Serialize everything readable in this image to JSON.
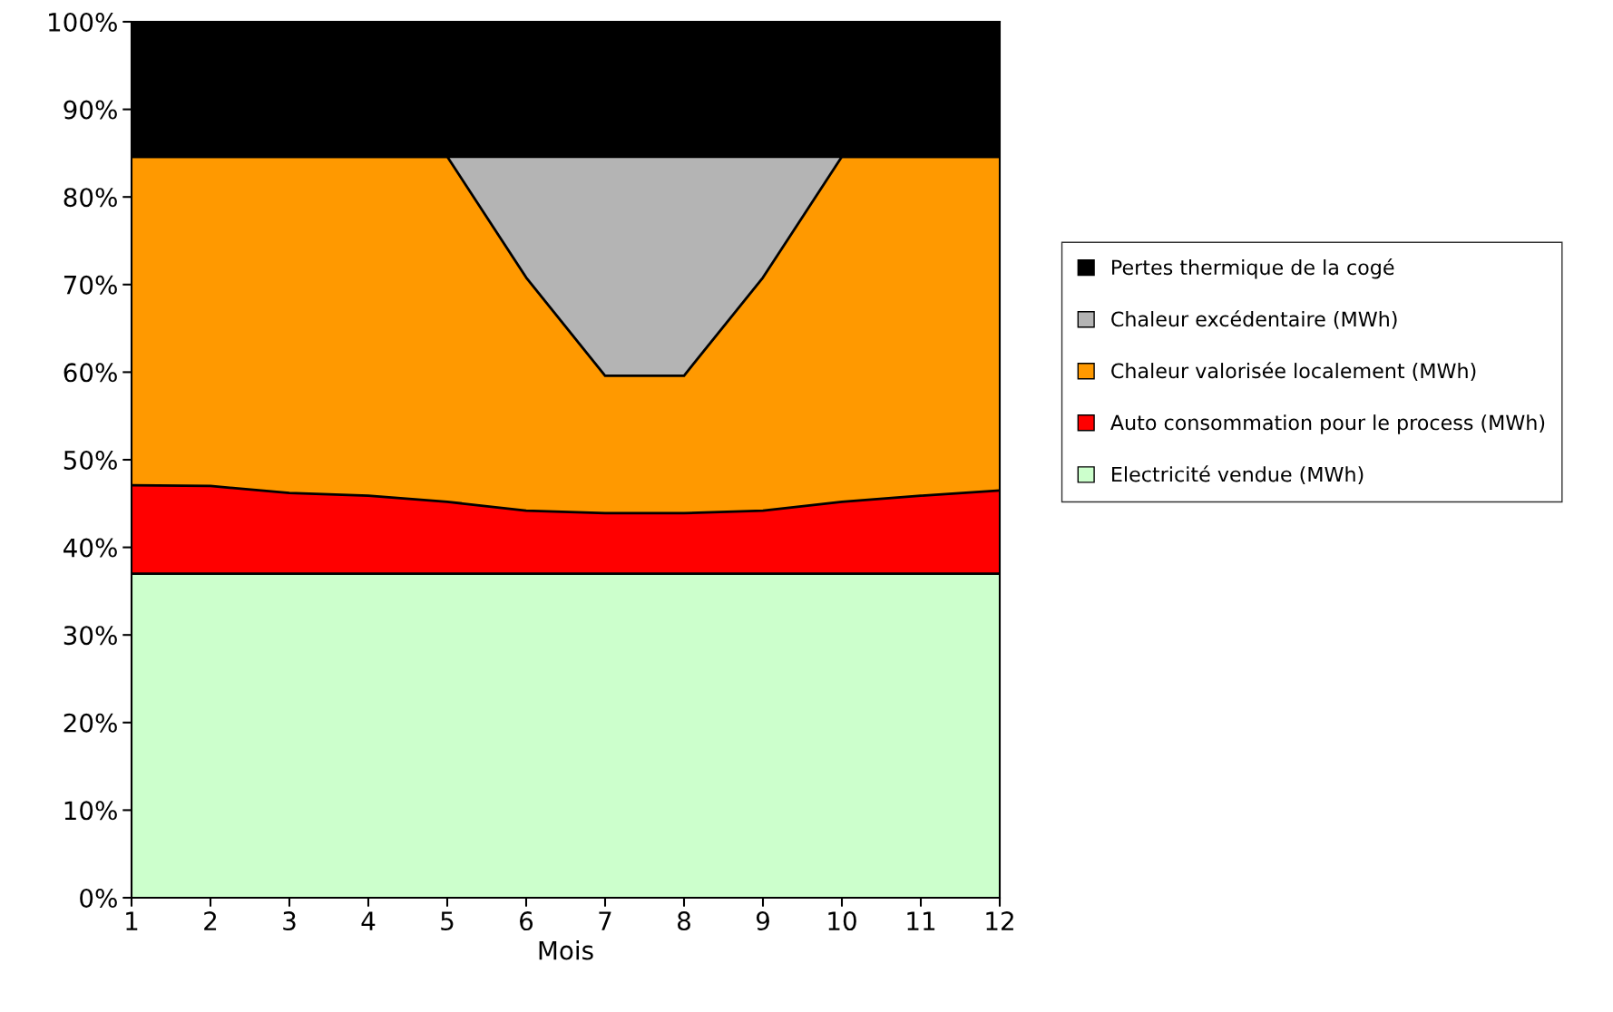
{
  "chart_data": {
    "type": "area",
    "stacked": true,
    "xlabel": "Mois",
    "x": [
      1,
      2,
      3,
      4,
      5,
      6,
      7,
      8,
      9,
      10,
      11,
      12
    ],
    "xlim": [
      1,
      12
    ],
    "xticks": [
      1,
      2,
      3,
      4,
      5,
      6,
      7,
      8,
      9,
      10,
      11,
      12
    ],
    "ylim": [
      0,
      100
    ],
    "yticks": [
      {
        "value": 0,
        "label": "0%"
      },
      {
        "value": 10,
        "label": "10%"
      },
      {
        "value": 20,
        "label": "20%"
      },
      {
        "value": 30,
        "label": "30%"
      },
      {
        "value": 40,
        "label": "40%"
      },
      {
        "value": 50,
        "label": "50%"
      },
      {
        "value": 60,
        "label": "60%"
      },
      {
        "value": 70,
        "label": "70%"
      },
      {
        "value": 80,
        "label": "80%"
      },
      {
        "value": 90,
        "label": "90%"
      },
      {
        "value": 100,
        "label": "100%"
      }
    ],
    "grid": false,
    "legend": "right",
    "series": [
      {
        "name": "Electricité vendue (MWh)",
        "color": "#ccffcc",
        "values": [
          37,
          37,
          37,
          37,
          37,
          37,
          37,
          37,
          37,
          37,
          37,
          37
        ]
      },
      {
        "name": "Auto consommation pour le process (MWh)",
        "color": "#ff0000",
        "values": [
          10.1,
          10.0,
          9.2,
          8.9,
          8.2,
          7.2,
          6.9,
          6.9,
          7.2,
          8.2,
          8.9,
          9.5
        ]
      },
      {
        "name": "Chaleur valorisée localement (MWh)",
        "color": "#ff9900",
        "values": [
          37.5,
          37.6,
          38.4,
          38.7,
          39.4,
          26.6,
          15.7,
          15.7,
          26.6,
          39.4,
          38.7,
          38.1
        ]
      },
      {
        "name": "Chaleur excédentaire (MWh)",
        "color": "#b4b4b4",
        "values": [
          0,
          0,
          0,
          0,
          0,
          13.8,
          25.0,
          25.0,
          13.8,
          0,
          0,
          0
        ]
      },
      {
        "name": "Pertes thermique de la cogé",
        "color": "#000000",
        "values": [
          15.4,
          15.4,
          15.4,
          15.4,
          15.4,
          15.4,
          15.4,
          15.4,
          15.4,
          15.4,
          15.4,
          15.4
        ]
      }
    ]
  }
}
